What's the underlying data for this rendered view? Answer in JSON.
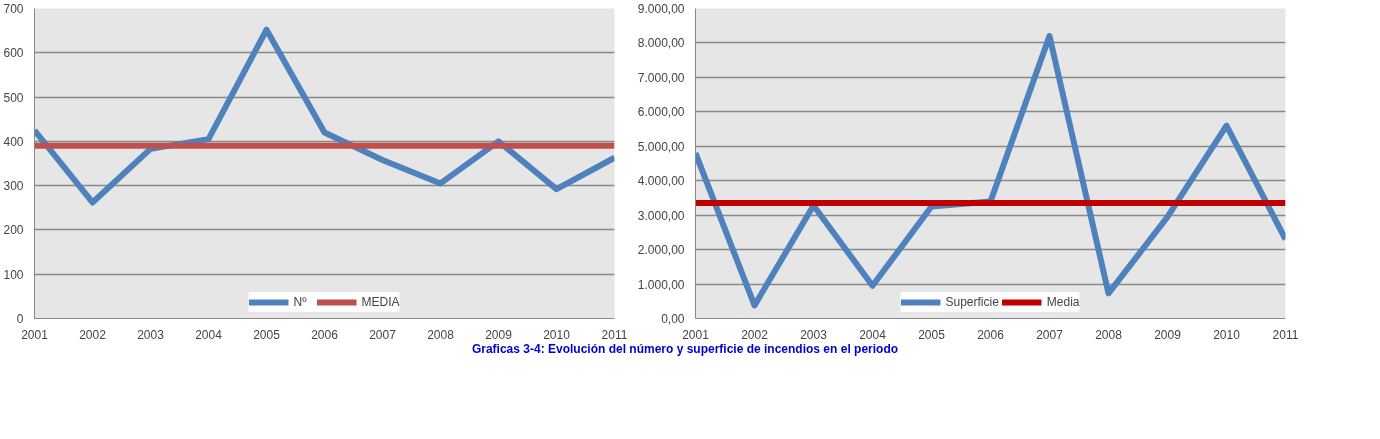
{
  "chart_data": [
    {
      "type": "line",
      "categories": [
        "2001",
        "2002",
        "2003",
        "2004",
        "2005",
        "2006",
        "2007",
        "2008",
        "2009",
        "2010",
        "2011"
      ],
      "series": [
        {
          "name": "Nº",
          "color": "#4f81bd",
          "values": [
            425,
            262,
            383,
            405,
            652,
            420,
            358,
            305,
            400,
            292,
            363
          ]
        },
        {
          "name": "MEDIA",
          "color": "#c0504d",
          "values": [
            390,
            390,
            390,
            390,
            390,
            390,
            390,
            390,
            390,
            390,
            390
          ]
        }
      ],
      "ylim": [
        0,
        700
      ],
      "yticks": [
        0,
        100,
        200,
        300,
        400,
        500,
        600,
        700
      ],
      "grid": "y",
      "legend": "bottom",
      "marker": "none",
      "line_style": "solid"
    },
    {
      "type": "line",
      "categories": [
        "2001",
        "2002",
        "2003",
        "2004",
        "2005",
        "2006",
        "2007",
        "2008",
        "2009",
        "2010",
        "2011"
      ],
      "series": [
        {
          "name": "Superficie",
          "color": "#4f81bd",
          "values": [
            4800,
            380,
            3280,
            950,
            3250,
            3400,
            8200,
            730,
            2950,
            5600,
            2300
          ]
        },
        {
          "name": "Media",
          "color": "#c00000",
          "values": [
            3350,
            3350,
            3350,
            3350,
            3350,
            3350,
            3350,
            3350,
            3350,
            3350,
            3350
          ]
        }
      ],
      "ylim": [
        0,
        9000
      ],
      "yticks": [
        {
          "value": 0,
          "label": "0,00"
        },
        {
          "value": 1000,
          "label": "1.000,00"
        },
        {
          "value": 2000,
          "label": "2.000,00"
        },
        {
          "value": 3000,
          "label": "3.000,00"
        },
        {
          "value": 4000,
          "label": "4.000,00"
        },
        {
          "value": 5000,
          "label": "5.000,00"
        },
        {
          "value": 6000,
          "label": "6.000,00"
        },
        {
          "value": 7000,
          "label": "7.000,00"
        },
        {
          "value": 8000,
          "label": "8.000,00"
        },
        {
          "value": 9000,
          "label": "9.000,00"
        }
      ],
      "grid": "y",
      "legend": "bottom",
      "marker": "none",
      "line_style": "solid",
      "annotations": [
        "Graficas 3-4: Evolución del número y superficie de incendios en el periodo"
      ]
    }
  ]
}
